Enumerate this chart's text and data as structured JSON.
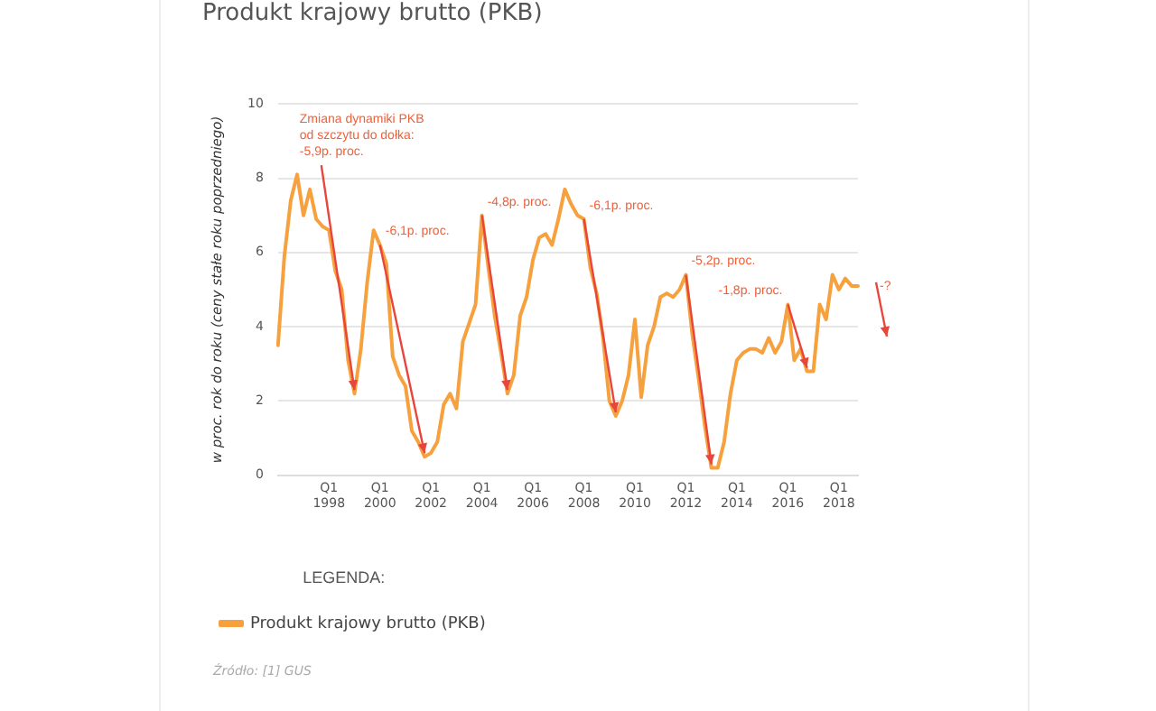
{
  "chart_data": {
    "type": "line",
    "title": "Produkt krajowy brutto (PKB)",
    "ylabel": "w proc. rok do roku (ceny stałe roku poprzedniego)",
    "legend_title": "LEGENDA:",
    "legend": "bottom",
    "grid": "y",
    "marker": "none",
    "line_style": "solid",
    "ylim": [
      0,
      10
    ],
    "yticks": [
      0,
      2,
      4,
      6,
      8,
      10
    ],
    "categories": [
      null,
      null,
      null,
      null,
      null,
      null,
      null,
      null,
      "Q1 1998",
      null,
      null,
      null,
      null,
      null,
      null,
      null,
      "Q1 2000",
      null,
      null,
      null,
      null,
      null,
      null,
      null,
      "Q1 2002",
      null,
      null,
      null,
      null,
      null,
      null,
      null,
      "Q1 2004",
      null,
      null,
      null,
      null,
      null,
      null,
      null,
      "Q1 2006",
      null,
      null,
      null,
      null,
      null,
      null,
      null,
      "Q1 2008",
      null,
      null,
      null,
      null,
      null,
      null,
      null,
      "Q1 2010",
      null,
      null,
      null,
      null,
      null,
      null,
      null,
      "Q1 2012",
      null,
      null,
      null,
      null,
      null,
      null,
      null,
      "Q1 2014",
      null,
      null,
      null,
      null,
      null,
      null,
      null,
      "Q1 2016",
      null,
      null,
      null,
      null,
      null,
      null,
      null,
      "Q1 2018",
      null,
      null,
      null
    ],
    "series": [
      {
        "name": "Produkt krajowy brutto (PKB)",
        "color": "#f7a13e",
        "values": [
          3.5,
          5.9,
          7.4,
          8.1,
          7.0,
          7.7,
          6.9,
          6.7,
          6.6,
          5.5,
          5.0,
          3.1,
          2.2,
          3.4,
          5.2,
          6.6,
          6.2,
          5.7,
          3.2,
          2.7,
          2.4,
          1.2,
          0.9,
          0.5,
          0.6,
          0.9,
          1.9,
          2.2,
          1.8,
          3.6,
          4.1,
          4.6,
          7.0,
          5.6,
          4.3,
          3.3,
          2.2,
          2.7,
          4.3,
          4.8,
          5.8,
          6.4,
          6.5,
          6.2,
          6.9,
          7.7,
          7.3,
          7.0,
          6.9,
          5.6,
          4.9,
          3.7,
          2.0,
          1.6,
          2.0,
          2.7,
          4.2,
          2.1,
          3.5,
          4.0,
          4.8,
          4.9,
          4.8,
          5.0,
          5.4,
          3.8,
          2.6,
          1.3,
          0.2,
          0.2,
          0.9,
          2.2,
          3.1,
          3.3,
          3.4,
          3.4,
          3.3,
          3.7,
          3.3,
          3.6,
          4.6,
          3.1,
          3.4,
          2.8,
          2.8,
          4.6,
          4.2,
          5.4,
          5.0,
          5.3,
          5.1,
          5.1
        ]
      }
    ],
    "annotations": [
      {
        "text": "Zmiana dynamiki PKB\nod szczytu do dołka:\n-5,9p. proc.",
        "y": 2.2
      },
      {
        "text": "-6,1p. proc.",
        "x": "Q1 2000",
        "y": 6.2
      },
      {
        "text": "-4,8p. proc.",
        "x": "Q1 2004",
        "y": 7.0
      },
      {
        "text": "-6,1p. proc.",
        "x": "Q1 2008",
        "y": 6.9
      },
      {
        "text": "-5,2p. proc.",
        "x": "Q1 2012",
        "y": 5.4
      },
      {
        "text": "-1,8p. proc.",
        "x": "Q1 2016",
        "y": 4.6
      },
      "-?",
      "Źródło: [1] GUS"
    ]
  }
}
